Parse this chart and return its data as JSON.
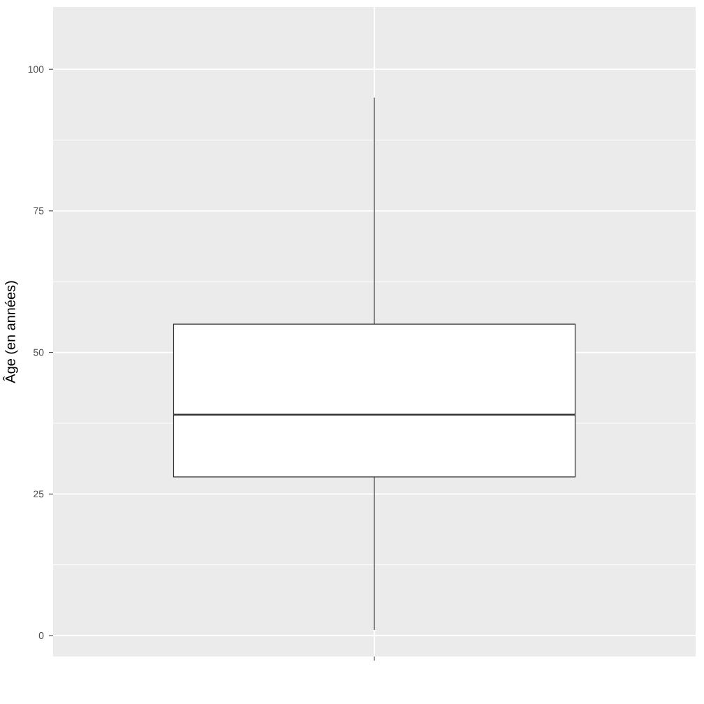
{
  "chart_data": {
    "type": "box",
    "ylabel": "Âge (en années)",
    "categories": [
      null
    ],
    "boxes": [
      {
        "low": 1,
        "q1": 28,
        "median": 39,
        "q3": 55,
        "high": 95
      }
    ],
    "ylim": [
      -3.7,
      111
    ],
    "yticks": [
      0,
      25,
      50,
      75,
      100
    ],
    "grid": true,
    "tick_labels": "y"
  }
}
